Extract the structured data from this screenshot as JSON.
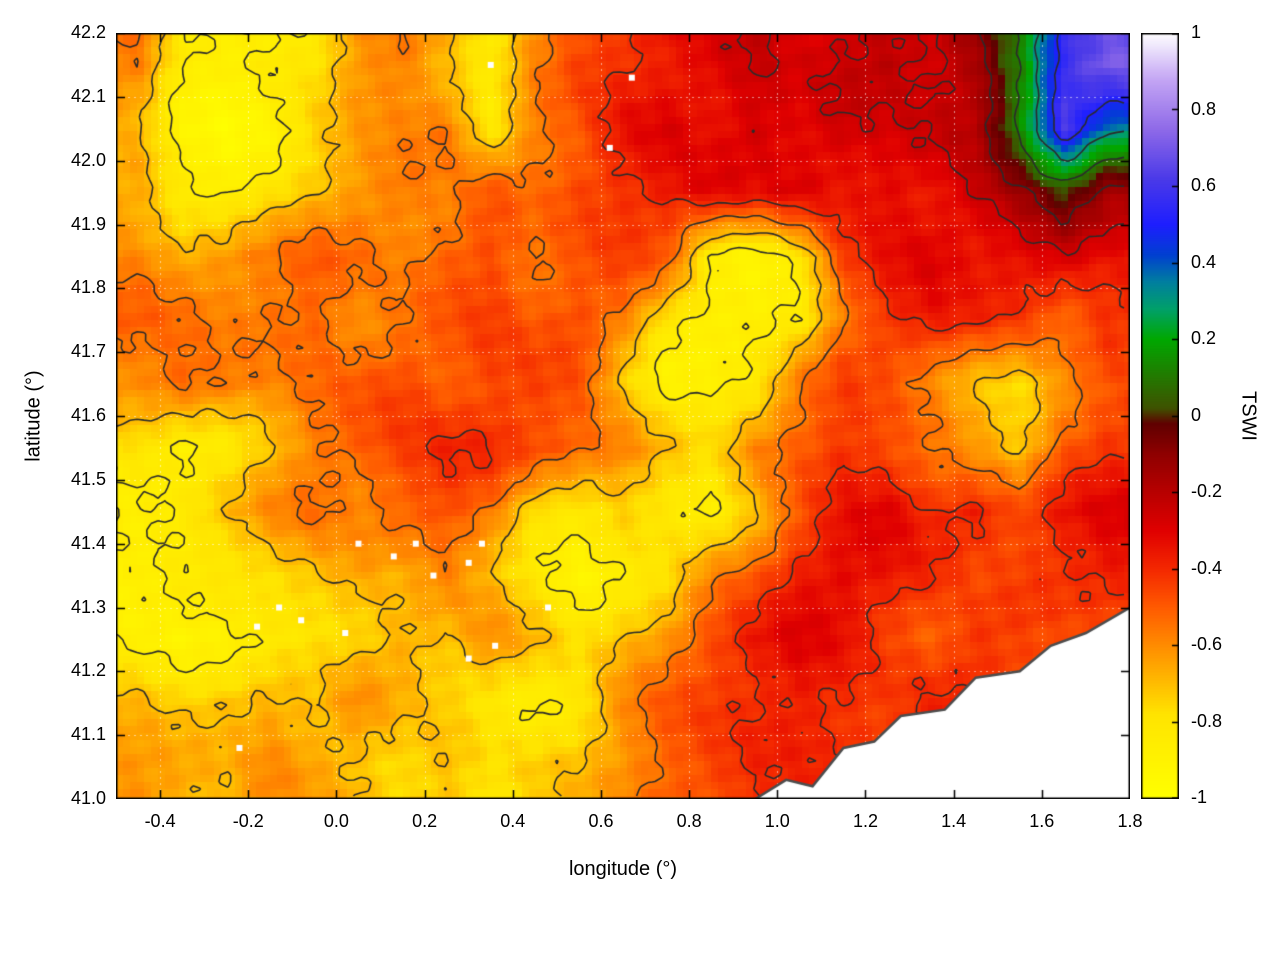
{
  "figure": {
    "background": "#ffffff",
    "border_color": "#000000",
    "grid_color": "#ffffff",
    "tick_font_px": 18
  },
  "chart_data": {
    "type": "heatmap",
    "title": "",
    "xlabel": "longitude (°)",
    "ylabel": "latitude (°)",
    "colorbar_label": "TSWI",
    "xlim": [
      -0.5,
      1.8
    ],
    "ylim": [
      41.0,
      42.2
    ],
    "zlim": [
      -1,
      1
    ],
    "x_tick_values": [
      -0.4,
      -0.2,
      0.0,
      0.2,
      0.4,
      0.6,
      0.8,
      1.0,
      1.2,
      1.4,
      1.6,
      1.8
    ],
    "x_tick_labels": [
      "-0.4",
      "-0.2",
      "0.0",
      "0.2",
      "0.4",
      "0.6",
      "0.8",
      "1.0",
      "1.2",
      "1.4",
      "1.6",
      "1.8"
    ],
    "y_tick_values": [
      41.0,
      41.1,
      41.2,
      41.3,
      41.4,
      41.5,
      41.6,
      41.7,
      41.8,
      41.9,
      42.0,
      42.1,
      42.2
    ],
    "y_tick_labels": [
      "41.0",
      "41.1",
      "41.2",
      "41.3",
      "41.4",
      "41.5",
      "41.6",
      "41.7",
      "41.8",
      "41.9",
      "42.0",
      "42.1",
      "42.2"
    ],
    "cb_tick_values": [
      1,
      0.8,
      0.6,
      0.4,
      0.2,
      0,
      -0.2,
      -0.4,
      -0.6,
      -0.8,
      -1
    ],
    "cb_tick_labels": [
      "1",
      "0.8",
      "0.6",
      "0.4",
      "0.2",
      "0",
      "-0.2",
      "-0.4",
      "-0.6",
      "-0.8",
      "-1"
    ],
    "palette_stops": [
      [
        -1.0,
        "#ffff00"
      ],
      [
        -0.78,
        "#ffe400"
      ],
      [
        -0.6,
        "#ff8c00"
      ],
      [
        -0.5,
        "#ff5a00"
      ],
      [
        -0.4,
        "#f42800"
      ],
      [
        -0.3,
        "#e00000"
      ],
      [
        -0.2,
        "#b80000"
      ],
      [
        -0.1,
        "#8f0000"
      ],
      [
        -0.02,
        "#600000"
      ],
      [
        0.02,
        "#3f5200"
      ],
      [
        0.1,
        "#247800"
      ],
      [
        0.2,
        "#00a800"
      ],
      [
        0.28,
        "#00a06a"
      ],
      [
        0.35,
        "#007f9f"
      ],
      [
        0.42,
        "#0040d0"
      ],
      [
        0.5,
        "#1e1eff"
      ],
      [
        0.62,
        "#4b3ae8"
      ],
      [
        0.75,
        "#8f6ae8"
      ],
      [
        0.88,
        "#c4a6f4"
      ],
      [
        1.0,
        "#ffffff"
      ]
    ],
    "lon_centers": [
      -0.45,
      -0.35,
      -0.25,
      -0.15,
      -0.05,
      0.05,
      0.15,
      0.25,
      0.35,
      0.45,
      0.55,
      0.65,
      0.75,
      0.85,
      0.95,
      1.05,
      1.15,
      1.25,
      1.35,
      1.45,
      1.55,
      1.65,
      1.75
    ],
    "lat_centers": [
      42.15,
      42.05,
      41.95,
      41.85,
      41.75,
      41.65,
      41.55,
      41.45,
      41.35,
      41.25,
      41.15,
      41.05
    ],
    "values": [
      [
        -0.55,
        -0.85,
        -0.9,
        -0.85,
        -0.8,
        -0.6,
        -0.55,
        -0.7,
        -0.85,
        -0.6,
        -0.45,
        -0.4,
        -0.35,
        -0.3,
        -0.25,
        -0.3,
        -0.25,
        -0.2,
        -0.25,
        -0.15,
        0.1,
        0.55,
        0.7
      ],
      [
        -0.7,
        -0.9,
        -0.95,
        -0.9,
        -0.75,
        -0.65,
        -0.6,
        -0.55,
        -0.8,
        -0.55,
        -0.5,
        -0.35,
        -0.3,
        -0.35,
        -0.25,
        -0.3,
        -0.25,
        -0.3,
        -0.25,
        -0.2,
        0.15,
        0.65,
        0.35
      ],
      [
        -0.65,
        -0.85,
        -0.9,
        -0.8,
        -0.7,
        -0.6,
        -0.55,
        -0.6,
        -0.5,
        -0.55,
        -0.45,
        -0.4,
        -0.35,
        -0.3,
        -0.35,
        -0.3,
        -0.35,
        -0.3,
        -0.35,
        -0.25,
        -0.15,
        0.0,
        -0.15
      ],
      [
        -0.6,
        -0.65,
        -0.6,
        -0.55,
        -0.5,
        -0.55,
        -0.6,
        -0.5,
        -0.45,
        -0.55,
        -0.5,
        -0.45,
        -0.5,
        -0.85,
        -0.9,
        -0.8,
        -0.45,
        -0.35,
        -0.3,
        -0.35,
        -0.3,
        -0.25,
        -0.35
      ],
      [
        -0.5,
        -0.55,
        -0.6,
        -0.55,
        -0.5,
        -0.6,
        -0.55,
        -0.5,
        -0.45,
        -0.5,
        -0.45,
        -0.55,
        -0.8,
        -0.9,
        -0.9,
        -0.85,
        -0.55,
        -0.4,
        -0.35,
        -0.4,
        -0.45,
        -0.55,
        -0.4
      ],
      [
        -0.6,
        -0.5,
        -0.55,
        -0.6,
        -0.55,
        -0.5,
        -0.45,
        -0.5,
        -0.45,
        -0.45,
        -0.5,
        -0.75,
        -0.9,
        -0.85,
        -0.8,
        -0.55,
        -0.45,
        -0.5,
        -0.6,
        -0.7,
        -0.75,
        -0.6,
        -0.5
      ],
      [
        -0.8,
        -0.9,
        -0.85,
        -0.7,
        -0.55,
        -0.5,
        -0.45,
        -0.4,
        -0.4,
        -0.45,
        -0.5,
        -0.55,
        -0.7,
        -0.8,
        -0.6,
        -0.5,
        -0.4,
        -0.45,
        -0.55,
        -0.65,
        -0.75,
        -0.5,
        -0.4
      ],
      [
        -0.85,
        -0.8,
        -0.7,
        -0.6,
        -0.55,
        -0.6,
        -0.5,
        -0.45,
        -0.55,
        -0.8,
        -0.85,
        -0.75,
        -0.8,
        -0.85,
        -0.7,
        -0.5,
        -0.35,
        -0.3,
        -0.4,
        -0.35,
        -0.45,
        -0.35,
        -0.3
      ],
      [
        -0.9,
        -0.85,
        -0.8,
        -0.75,
        -0.7,
        -0.65,
        -0.7,
        -0.6,
        -0.7,
        -0.8,
        -0.9,
        -0.85,
        -0.8,
        -0.6,
        -0.5,
        -0.35,
        -0.3,
        -0.35,
        -0.4,
        -0.5,
        -0.45,
        -0.4,
        -0.35
      ],
      [
        -0.85,
        -0.9,
        -0.9,
        -0.85,
        -0.8,
        -0.75,
        -0.65,
        -0.7,
        -0.6,
        -0.7,
        -0.8,
        -0.7,
        -0.6,
        -0.45,
        -0.35,
        -0.3,
        -0.35,
        -0.45,
        -0.5,
        -0.4,
        -0.45,
        -0.5,
        null
      ],
      [
        -0.7,
        -0.75,
        -0.7,
        -0.65,
        -0.7,
        -0.6,
        -0.7,
        -0.75,
        -0.8,
        -0.85,
        -0.8,
        -0.6,
        -0.5,
        -0.45,
        -0.4,
        -0.35,
        -0.4,
        -0.45,
        -0.4,
        null,
        null,
        null,
        null
      ],
      [
        -0.6,
        -0.65,
        -0.7,
        -0.6,
        -0.65,
        -0.7,
        -0.75,
        -0.7,
        -0.8,
        -0.75,
        -0.7,
        -0.6,
        -0.5,
        -0.45,
        -0.4,
        null,
        null,
        null,
        null,
        null,
        null,
        null,
        null
      ]
    ],
    "contour_levels": [
      -0.85,
      -0.7,
      -0.55,
      -0.4,
      -0.25,
      -0.1,
      0.1,
      0.3,
      0.5
    ],
    "contour_color": "#2b2b2b",
    "coastline": [
      [
        0.95,
        41.0
      ],
      [
        1.02,
        41.03
      ],
      [
        1.08,
        41.02
      ],
      [
        1.15,
        41.08
      ],
      [
        1.22,
        41.09
      ],
      [
        1.28,
        41.13
      ],
      [
        1.38,
        41.14
      ],
      [
        1.45,
        41.19
      ],
      [
        1.55,
        41.2
      ],
      [
        1.62,
        41.24
      ],
      [
        1.7,
        41.26
      ],
      [
        1.8,
        41.3
      ]
    ],
    "coast_color": "#4d4d4d",
    "sea_color": "#ffffff",
    "gap_points": [
      [
        0.13,
        41.38
      ],
      [
        0.18,
        41.4
      ],
      [
        0.22,
        41.35
      ],
      [
        0.3,
        41.37
      ],
      [
        0.33,
        41.4
      ],
      [
        -0.13,
        41.3
      ],
      [
        -0.08,
        41.28
      ],
      [
        -0.18,
        41.27
      ],
      [
        0.02,
        41.26
      ],
      [
        0.36,
        41.24
      ],
      [
        0.3,
        41.22
      ],
      [
        0.48,
        41.3
      ],
      [
        0.35,
        42.15
      ],
      [
        0.62,
        42.02
      ],
      [
        0.67,
        42.13
      ],
      [
        -0.22,
        41.08
      ],
      [
        0.05,
        41.4
      ]
    ]
  }
}
